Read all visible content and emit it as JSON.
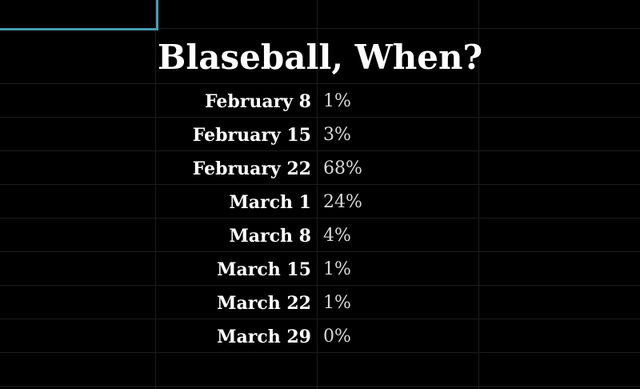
{
  "title": "Blaseball, When?",
  "accent_color": "#4a9bb0",
  "rows": [
    {
      "date": "February 8",
      "percent": "1%"
    },
    {
      "date": "February 15",
      "percent": "3%"
    },
    {
      "date": "February 22",
      "percent": "68%"
    },
    {
      "date": "March 1",
      "percent": "24%"
    },
    {
      "date": "March 8",
      "percent": "4%"
    },
    {
      "date": "March 15",
      "percent": "1%"
    },
    {
      "date": "March 22",
      "percent": "1%"
    },
    {
      "date": "March 29",
      "percent": "0%"
    }
  ]
}
